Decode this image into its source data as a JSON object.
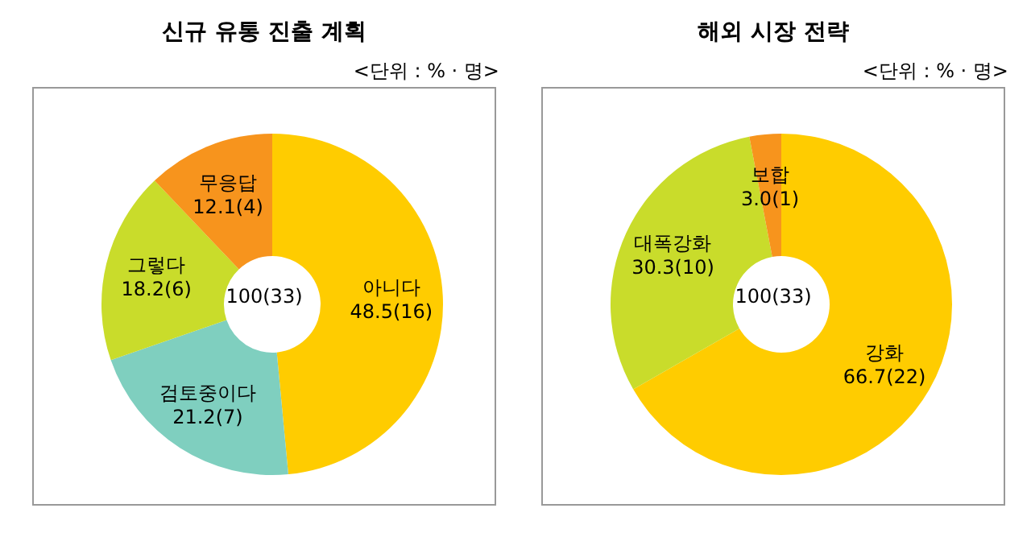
{
  "chart_data": [
    {
      "type": "donut",
      "title": "신규 유통 진출 계획",
      "subtitle": "<단위 : % · 명>",
      "categories": [
        "아니다",
        "검토중이다",
        "그렇다",
        "무응답"
      ],
      "values": [
        48.5,
        21.2,
        18.2,
        12.1
      ],
      "value_labels": [
        "48.5(16)",
        "21.2(7)",
        "18.2(6)",
        "12.1(4)"
      ],
      "colors": [
        "#ffcc00",
        "#7fcfbf",
        "#c9dc2b",
        "#f7941d"
      ],
      "annotations": [
        "100(33)"
      ]
    },
    {
      "type": "donut",
      "title": "해외 시장 전략",
      "subtitle": "<단위 : % · 명>",
      "categories": [
        "강화",
        "대폭강화",
        "보합"
      ],
      "values": [
        66.7,
        30.3,
        3.0
      ],
      "value_labels": [
        "66.7(22)",
        "30.3(10)",
        "3.0(1)"
      ],
      "colors": [
        "#ffcc00",
        "#c9dc2b",
        "#f7941d"
      ],
      "annotations": [
        "100(33)"
      ]
    }
  ]
}
